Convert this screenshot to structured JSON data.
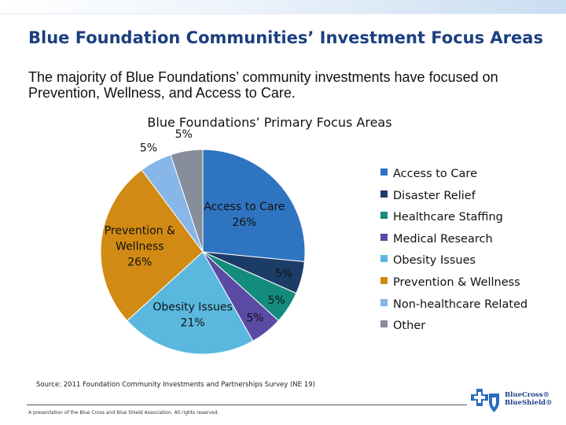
{
  "page": {
    "title": "Blue Foundation Communities’ Investment Focus Areas",
    "subtitle": "The majority of Blue Foundations’ community investments have focused on Prevention, Wellness, and Access to Care.",
    "source": "Source: 2011 Foundation Community Investments and Partnerships Survey (NE 19)",
    "footer": "A presentation of the Blue Cross and Blue Shield Association. All rights reserved.",
    "logo": {
      "line1": "BlueCross®",
      "line2": "BlueShield®",
      "icons": [
        "blue-cross-icon",
        "blue-shield-icon"
      ]
    }
  },
  "chart_data": {
    "type": "pie",
    "title": "Blue Foundations’ Primary Focus Areas",
    "legend_position": "right",
    "start_angle_deg": 0,
    "direction": "clockwise",
    "slices": [
      {
        "name": "Access to Care",
        "value": 26,
        "label": "Access to Care\n26%",
        "color": "#2e74c0"
      },
      {
        "name": "Disaster Relief",
        "value": 5,
        "label": "5%",
        "color": "#1c3c68"
      },
      {
        "name": "Healthcare Staffing",
        "value": 5,
        "label": "5%",
        "color": "#138c7e"
      },
      {
        "name": "Medical Research",
        "value": 5,
        "label": "5%",
        "color": "#5a4aa3"
      },
      {
        "name": "Obesity Issues",
        "value": 21,
        "label": "Obesity Issues\n21%",
        "color": "#5ab8de"
      },
      {
        "name": "Prevention & Wellness",
        "value": 26,
        "label": "Prevention &\nWellness\n26%",
        "color": "#d18b14"
      },
      {
        "name": "Non-healthcare Related",
        "value": 5,
        "label": "5%",
        "color": "#87b6e8"
      },
      {
        "name": "Other",
        "value": 5,
        "label": "5%",
        "color": "#878d99"
      }
    ]
  }
}
